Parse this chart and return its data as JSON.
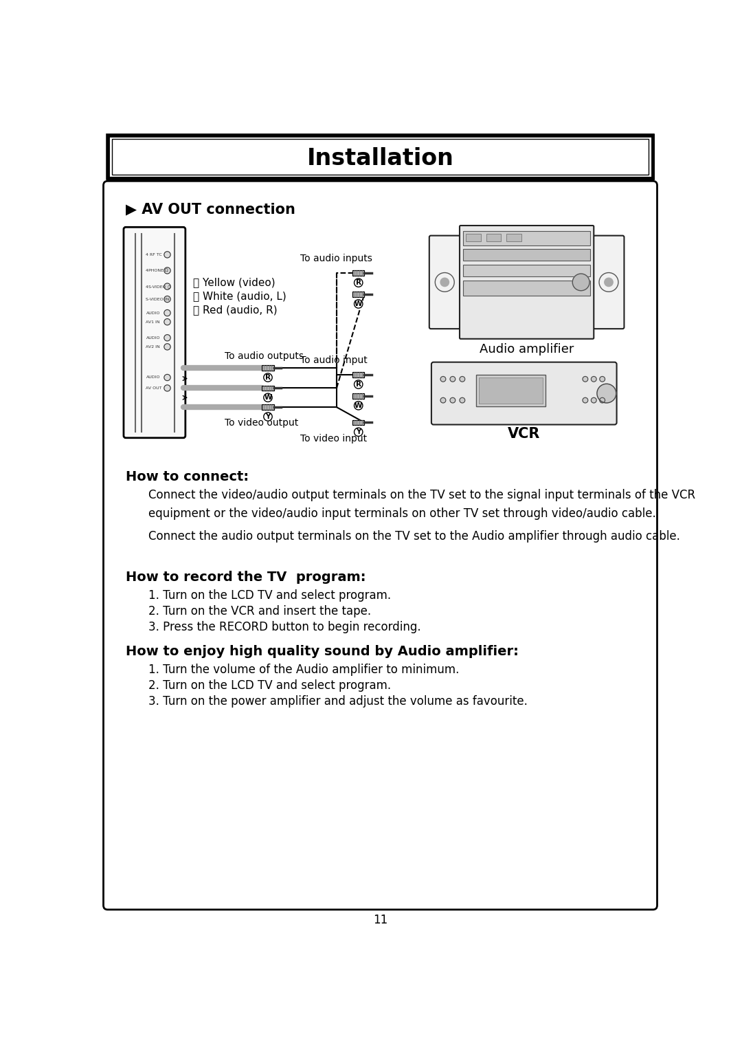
{
  "title": "Installation",
  "section_title": "▶ AV OUT connection",
  "legend_y": "Ⓨ Yellow (video)",
  "legend_w": "Ⓦ White (audio, L)",
  "legend_r": "Ⓡ Red (audio, R)",
  "label_audio_outputs": "To audio outputs",
  "label_video_output": "To video output",
  "label_audio_inputs": "To audio inputs",
  "label_audio_input": "To audio input",
  "label_audio_amplifier": "Audio amplifier",
  "label_vcr": "VCR",
  "label_to_video_input": "To video input",
  "how_to_connect_title": "How to connect:",
  "how_to_connect_text1": "Connect the video/audio output terminals on the TV set to the signal input terminals of the VCR\nequipment or the video/audio input terminals on other TV set through video/audio cable.",
  "how_to_connect_text2": "Connect the audio output terminals on the TV set to the Audio amplifier through audio cable.",
  "how_to_record_title": "How to record the TV  program:",
  "how_to_record_items": [
    "1. Turn on the LCD TV and select program.",
    "2. Turn on the VCR and insert the tape.",
    "3. Press the RECORD button to begin recording."
  ],
  "how_to_enjoy_title": "How to enjoy high quality sound by Audio amplifier:",
  "how_to_enjoy_items": [
    "1. Turn the volume of the Audio amplifier to minimum.",
    "2. Turn on the LCD TV and select program.",
    "3. Turn on the power amplifier and adjust the volume as favourite."
  ],
  "page_number": "11",
  "bg_color": "#ffffff",
  "border_color": "#000000",
  "text_color": "#000000",
  "fig_w": 10.8,
  "fig_h": 15.27,
  "dpi": 100
}
